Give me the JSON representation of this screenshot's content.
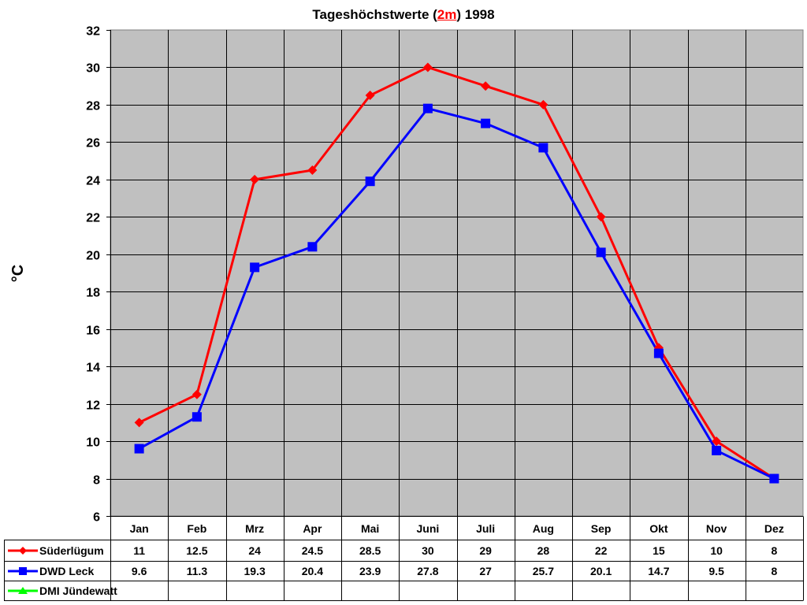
{
  "title": {
    "prefix": "Tageshöchstwerte (",
    "highlight": "2m",
    "suffix": ") 1998",
    "highlight_color": "#ff0000"
  },
  "chart_data": {
    "type": "line",
    "title": "Tageshöchstwerte (2m) 1998",
    "xlabel": "",
    "ylabel": "°C",
    "ylim": [
      6,
      32
    ],
    "yticks": [
      6,
      8,
      10,
      12,
      14,
      16,
      18,
      20,
      22,
      24,
      26,
      28,
      30,
      32
    ],
    "grid": true,
    "plot_background": "#c0c0c0",
    "legend_position": "data-table-left",
    "categories": [
      "Jan",
      "Feb",
      "Mrz",
      "Apr",
      "Mai",
      "Juni",
      "Juli",
      "Aug",
      "Sep",
      "Okt",
      "Nov",
      "Dez"
    ],
    "series": [
      {
        "name": "Süderlügum",
        "color": "#ff0000",
        "marker": "diamond",
        "values": [
          11,
          12.5,
          24,
          24.5,
          28.5,
          30,
          29,
          28,
          22,
          15,
          10,
          8
        ]
      },
      {
        "name": "DWD Leck",
        "color": "#0000ff",
        "marker": "square",
        "values": [
          9.6,
          11.3,
          19.3,
          20.4,
          23.9,
          27.8,
          27,
          25.7,
          20.1,
          14.7,
          9.5,
          8
        ]
      },
      {
        "name": "DMI Jündewatt",
        "color": "#00ff00",
        "marker": "triangle",
        "values": [
          null,
          null,
          null,
          null,
          null,
          null,
          null,
          null,
          null,
          null,
          null,
          null
        ]
      }
    ]
  }
}
